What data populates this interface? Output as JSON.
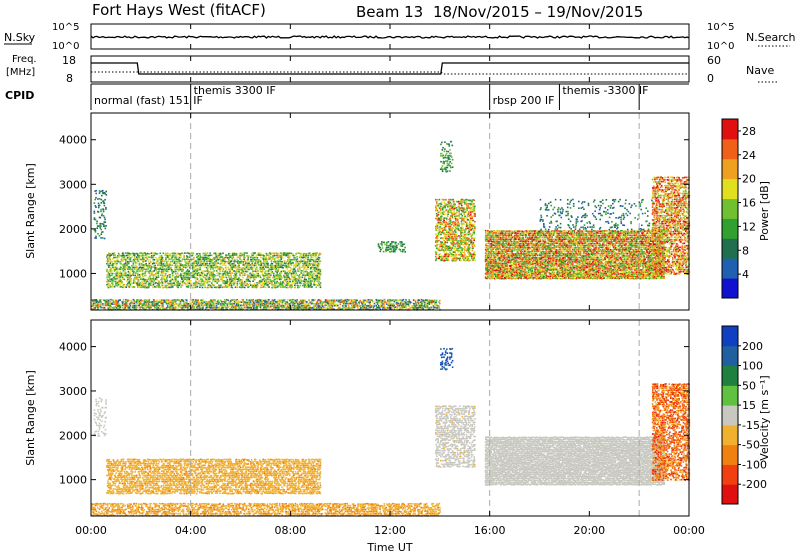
{
  "header": {
    "radar": "Fort Hays West (fitACF)",
    "beam": "Beam 13",
    "date_range": "18/Nov/2015 – 19/Nov/2015"
  },
  "top_panels": {
    "nsky": {
      "label": "N.Sky",
      "yticks": [
        "10^5",
        "10^0"
      ],
      "right_label": "N.Search",
      "right_ticks": [
        "10^5",
        "10^0"
      ]
    },
    "freq": {
      "label_line1": "Freq.",
      "label_line2": "[MHz]",
      "yticks": [
        "18",
        "8"
      ],
      "right_label": "Nave",
      "right_ticks": [
        "60",
        "0"
      ]
    },
    "cpid": {
      "label": "CPID",
      "segments": [
        {
          "name": "normal (fast)  151 IF",
          "start_h": 0,
          "end_h": 4
        },
        {
          "name": "themis 3300 IF",
          "start_h": 4,
          "end_h": 16
        },
        {
          "name": "rbsp 200 IF",
          "start_h": 16,
          "end_h": 18.8
        },
        {
          "name": "themis -3300 IF",
          "start_h": 18.8,
          "end_h": 22
        }
      ]
    }
  },
  "x_axis": {
    "label": "Time UT",
    "ticks": [
      "00:00",
      "04:00",
      "08:00",
      "12:00",
      "16:00",
      "20:00",
      "00:00"
    ],
    "range_h": [
      0,
      24
    ]
  },
  "chart_data": [
    {
      "type": "heatmap",
      "title": "Power",
      "ylabel": "Slant Range [km]",
      "ylim": [
        180,
        4600
      ],
      "yticks": [
        1000,
        2000,
        3000,
        4000
      ],
      "xlabel": "Time UT",
      "colorbar": {
        "label": "Power [dB]",
        "ticks": [
          4,
          8,
          12,
          16,
          20,
          24,
          28
        ],
        "range": [
          0,
          30
        ],
        "colors": [
          "#1010d0",
          "#2060b0",
          "#207050",
          "#30a030",
          "#70c030",
          "#e0e020",
          "#f0a020",
          "#f06018",
          "#e01010"
        ]
      },
      "scatter_regions": [
        {
          "t0": 0.1,
          "t1": 0.6,
          "r0": 1800,
          "r1": 2900,
          "density": 0.25,
          "v0": 5,
          "v1": 12
        },
        {
          "t0": 0.6,
          "t1": 9.2,
          "r0": 700,
          "r1": 1500,
          "density": 0.55,
          "v0": 8,
          "v1": 22
        },
        {
          "t0": 0,
          "t1": 14.0,
          "r0": 200,
          "r1": 450,
          "density": 0.6,
          "v0": 4,
          "v1": 26
        },
        {
          "t0": 11.5,
          "t1": 12.6,
          "r0": 1500,
          "r1": 1750,
          "density": 0.4,
          "v0": 8,
          "v1": 14
        },
        {
          "t0": 13.8,
          "t1": 15.4,
          "r0": 1300,
          "r1": 2700,
          "density": 0.55,
          "v0": 10,
          "v1": 28
        },
        {
          "t0": 14.0,
          "t1": 14.5,
          "r0": 3300,
          "r1": 4000,
          "density": 0.3,
          "v0": 8,
          "v1": 16
        },
        {
          "t0": 15.8,
          "t1": 23.0,
          "r0": 900,
          "r1": 2000,
          "density": 0.85,
          "v0": 10,
          "v1": 30
        },
        {
          "t0": 18.0,
          "t1": 22.5,
          "r0": 2000,
          "r1": 2700,
          "density": 0.12,
          "v0": 4,
          "v1": 12
        },
        {
          "t0": 22.5,
          "t1": 24.0,
          "r0": 1000,
          "r1": 3200,
          "density": 0.6,
          "v0": 14,
          "v1": 30
        }
      ]
    },
    {
      "type": "heatmap",
      "title": "Velocity",
      "ylabel": "Slant Range [km]",
      "ylim": [
        180,
        4600
      ],
      "yticks": [
        1000,
        2000,
        3000,
        4000
      ],
      "xlabel": "Time UT",
      "colorbar": {
        "label": "Velocity [m s⁻¹]",
        "ticks": [
          200,
          100,
          50,
          15,
          -15,
          -50,
          -100,
          -200
        ],
        "range": [
          -250,
          250
        ],
        "colors": [
          "#1040c0",
          "#2060a0",
          "#208040",
          "#60c040",
          "#c8c8c0",
          "#f0b030",
          "#f08010",
          "#f04010",
          "#e01010"
        ]
      },
      "scatter_regions": [
        {
          "t0": 0.1,
          "t1": 0.6,
          "r0": 2000,
          "r1": 2900,
          "density": 0.25,
          "v0": -15,
          "v1": 15
        },
        {
          "t0": 0.6,
          "t1": 9.2,
          "r0": 700,
          "r1": 1500,
          "density": 0.6,
          "v0": -90,
          "v1": -30
        },
        {
          "t0": 0,
          "t1": 14.0,
          "r0": 200,
          "r1": 500,
          "density": 0.55,
          "v0": -100,
          "v1": -40
        },
        {
          "t0": 13.8,
          "t1": 15.4,
          "r0": 1300,
          "r1": 2700,
          "density": 0.5,
          "v0": -30,
          "v1": 20
        },
        {
          "t0": 14.0,
          "t1": 14.5,
          "r0": 3500,
          "r1": 4000,
          "density": 0.3,
          "v0": 150,
          "v1": 220
        },
        {
          "t0": 15.8,
          "t1": 23.0,
          "r0": 900,
          "r1": 2000,
          "density": 0.9,
          "v0": -12,
          "v1": 12
        },
        {
          "t0": 22.5,
          "t1": 24.0,
          "r0": 1000,
          "r1": 3200,
          "density": 0.55,
          "v0": -200,
          "v1": -60
        }
      ]
    }
  ]
}
